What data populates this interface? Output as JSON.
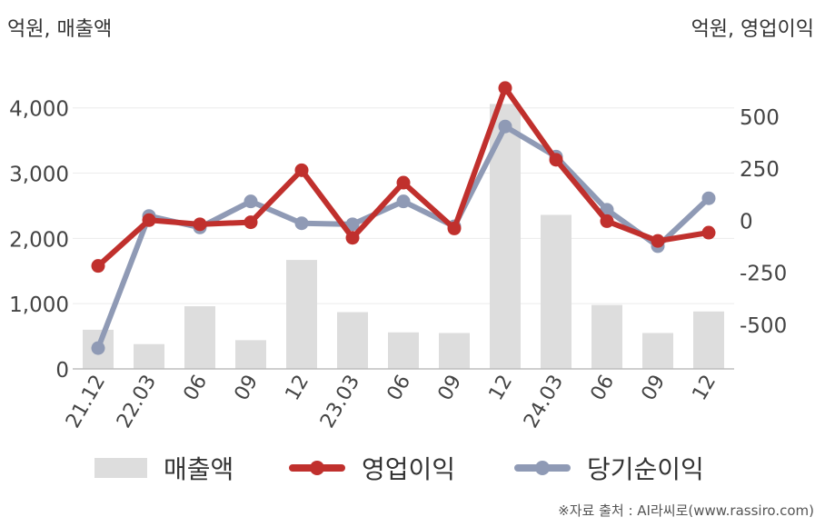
{
  "chart_data": {
    "type": "bar+line",
    "left_axis_unit": "억원, 매출액",
    "right_axis_unit": "억원, 영업이익",
    "categories": [
      "21.12",
      "22.03",
      "06",
      "09",
      "12",
      "23.03",
      "06",
      "09",
      "12",
      "24.03",
      "06",
      "09",
      "12"
    ],
    "left_axis": {
      "ticks": [
        0,
        1000,
        2000,
        3000,
        4000
      ],
      "tick_labels": [
        "0",
        "1,000",
        "2,000",
        "3,000",
        "4,000"
      ],
      "range": [
        0,
        4400
      ]
    },
    "right_axis": {
      "ticks": [
        -500,
        -250,
        0,
        250,
        500
      ],
      "tick_labels": [
        "-500",
        "-250",
        "0",
        "250",
        "500"
      ],
      "range": [
        -715,
        665
      ]
    },
    "series": [
      {
        "name": "매출액",
        "kind": "bar",
        "axis": "left",
        "color": "#dddddd",
        "values": [
          600,
          380,
          960,
          440,
          1670,
          870,
          560,
          550,
          4060,
          2360,
          980,
          550,
          880
        ]
      },
      {
        "name": "영업이익",
        "kind": "line",
        "axis": "right",
        "color": "#c0302d",
        "values": [
          -220,
          0,
          -20,
          -10,
          240,
          -85,
          180,
          -40,
          635,
          290,
          -5,
          -100,
          -60
        ]
      },
      {
        "name": "당기순이익",
        "kind": "line",
        "axis": "right",
        "color": "#8f9ab5",
        "values": [
          -615,
          20,
          -35,
          90,
          -15,
          -20,
          90,
          -30,
          450,
          305,
          50,
          -125,
          105
        ]
      }
    ],
    "grid": true,
    "legend_position": "bottom"
  },
  "legend": {
    "bar_label": "매출액",
    "line1_label": "영업이익",
    "line2_label": "당기순이익"
  },
  "source": "※자료 출처 : AI라씨로(www.rassiro.com)"
}
